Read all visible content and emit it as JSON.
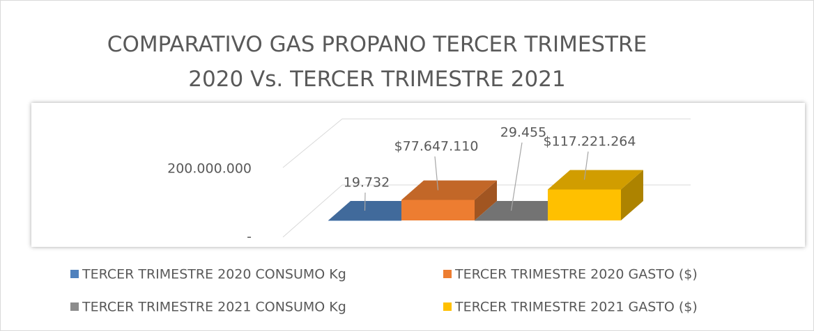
{
  "chart_data": {
    "type": "bar3d",
    "title": "COMPARATIVO GAS PROPANO TERCER TRIMESTRE 2020 Vs. TERCER TRIMESTRE 2021",
    "categories": [
      null
    ],
    "series": [
      {
        "name": "TERCER TRIMESTRE 2020 CONSUMO Kg",
        "color": "#4f81bd",
        "values": [
          19732
        ],
        "value_labels": [
          "19.732"
        ]
      },
      {
        "name": "TERCER TRIMESTRE 2020 GASTO ($)",
        "color": "#ed7d31",
        "values": [
          77647110
        ],
        "value_labels": [
          "$77.647.110"
        ]
      },
      {
        "name": "TERCER TRIMESTRE 2021 CONSUMO Kg",
        "color": "#8c8c8c",
        "values": [
          29455
        ],
        "value_labels": [
          "29.455"
        ]
      },
      {
        "name": "TERCER TRIMESTRE 2021 GASTO ($)",
        "color": "#ffc000",
        "values": [
          117221264
        ],
        "value_labels": [
          "$117.221.264"
        ]
      }
    ],
    "ylim": [
      0,
      200000000
    ],
    "yticks": [
      {
        "value": 0,
        "label": "-"
      },
      {
        "value": 200000000,
        "label": "200.000.000"
      }
    ],
    "grid": true,
    "legend": "bottom"
  }
}
